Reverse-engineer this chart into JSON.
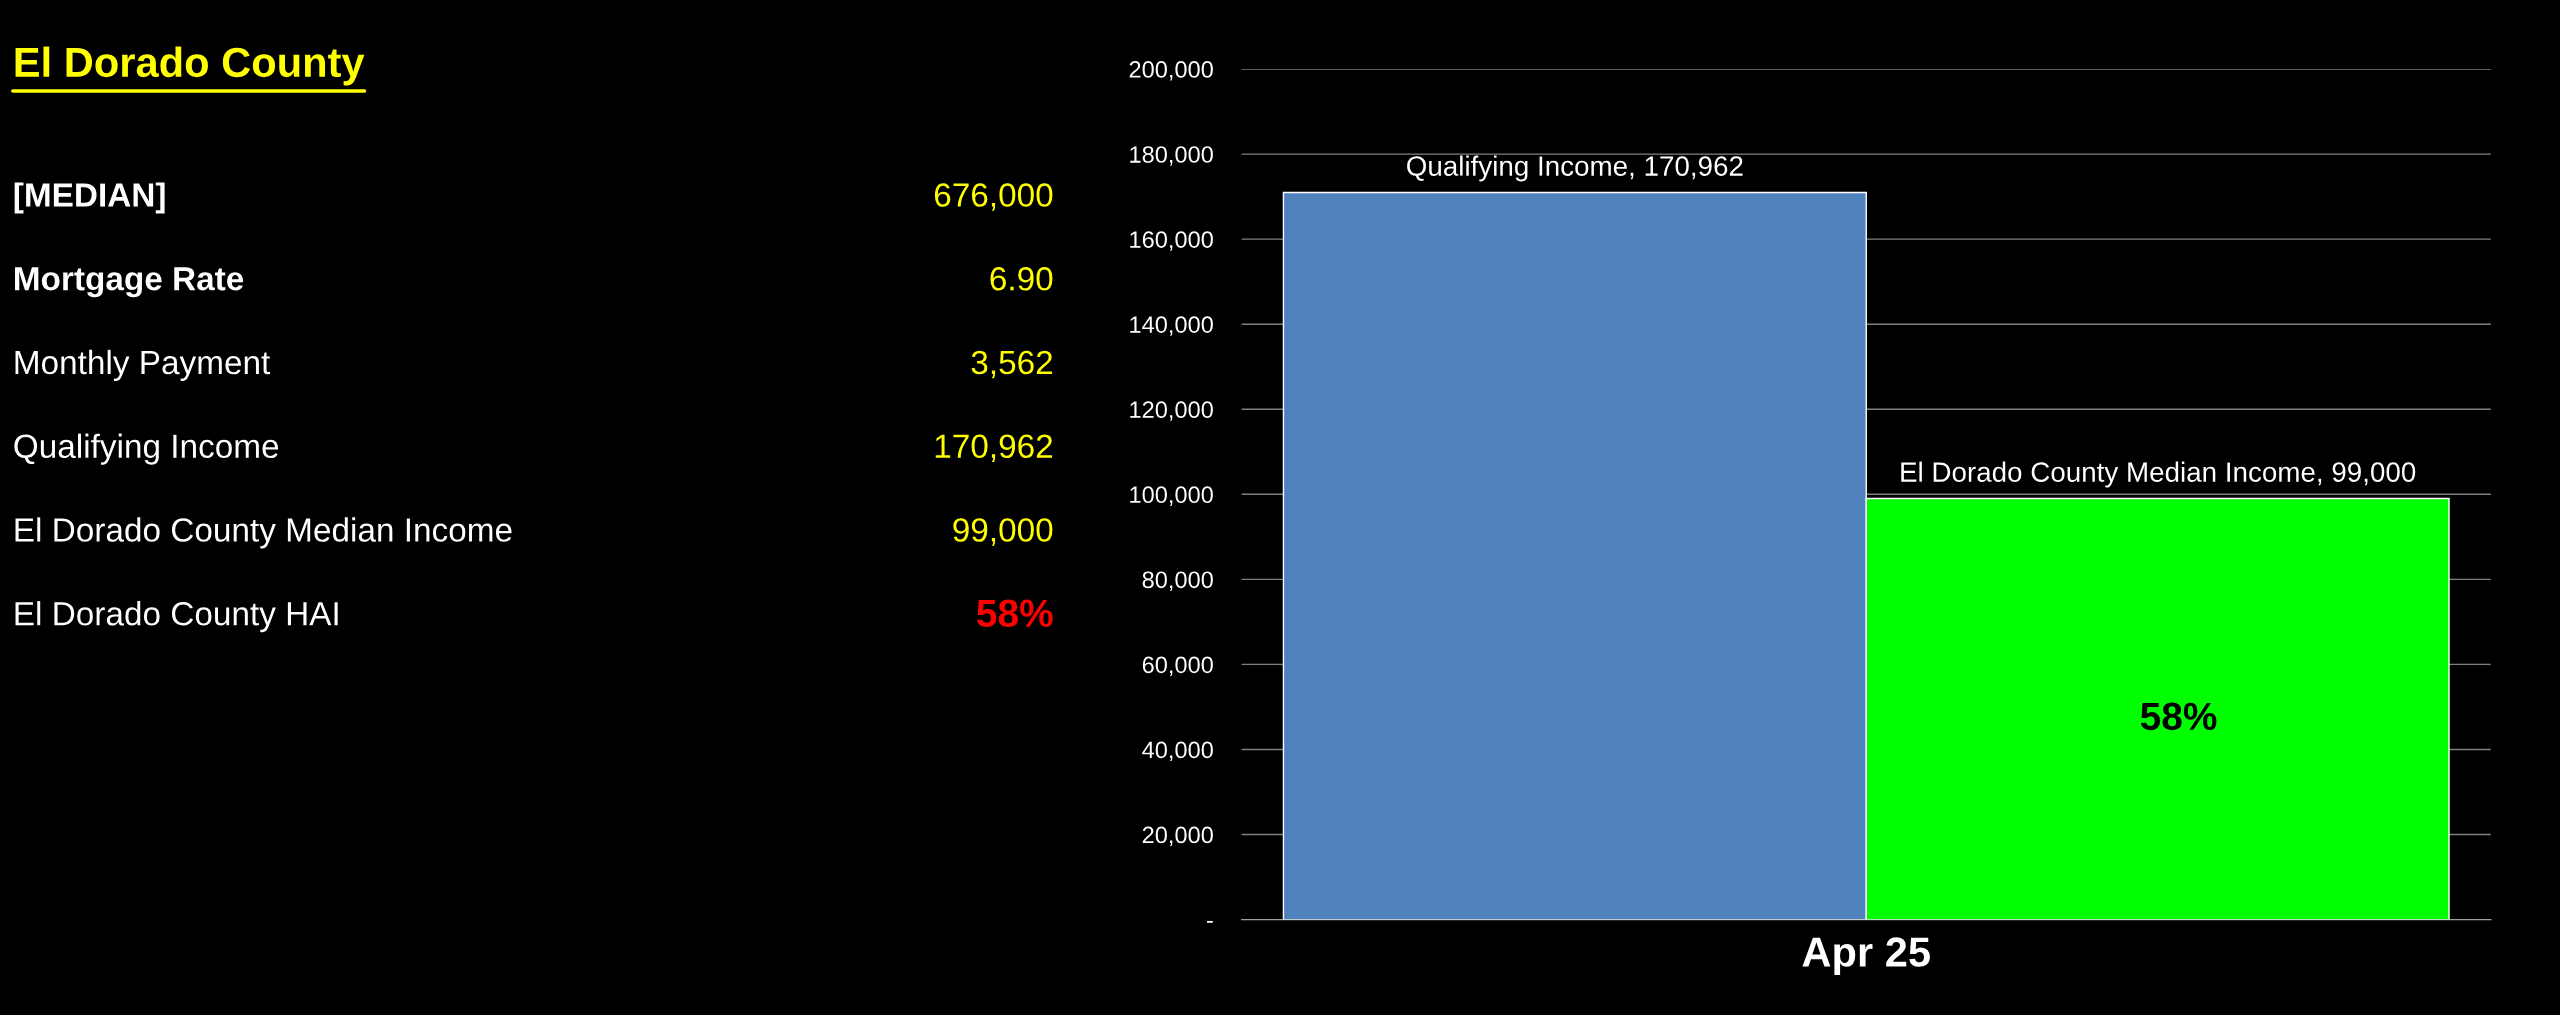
{
  "chart_data": [
    {
      "type": "other",
      "title": "El Dorado County",
      "annotations": [
        "[MEDIAN]",
        "676,000",
        "Mortgage Rate",
        "6.90",
        "Monthly Payment",
        "3,562",
        "Qualifying Income",
        "170,962",
        "El Dorado County Median Income",
        "99,000",
        "El Dorado County HAI",
        "58%"
      ]
    },
    {
      "type": "bar",
      "categories": [
        "Apr 25"
      ],
      "series": [
        {
          "color": "#4f81bd",
          "values": [
            170962
          ],
          "value_labels": [
            "Qualifying Income, 170,962"
          ]
        },
        {
          "color": "#00ff00",
          "values": [
            99000
          ],
          "value_labels": [
            "El Dorado County Median Income, 99,000"
          ]
        }
      ],
      "annotations": [
        "58%"
      ],
      "ylim": [
        0,
        200000
      ],
      "yticks": [
        {
          "value": 0,
          "label": "-"
        },
        {
          "value": 20000,
          "label": "20,000"
        },
        {
          "value": 40000,
          "label": "40,000"
        },
        {
          "value": 60000,
          "label": "60,000"
        },
        {
          "value": 80000,
          "label": "80,000"
        },
        {
          "value": 100000,
          "label": "100,000"
        },
        {
          "value": 120000,
          "label": "120,000"
        },
        {
          "value": 140000,
          "label": "140,000"
        },
        {
          "value": 160000,
          "label": "160,000"
        },
        {
          "value": 180000,
          "label": "180,000"
        },
        {
          "value": 200000,
          "label": "200,000"
        }
      ],
      "grid": "y",
      "legend": false
    }
  ]
}
